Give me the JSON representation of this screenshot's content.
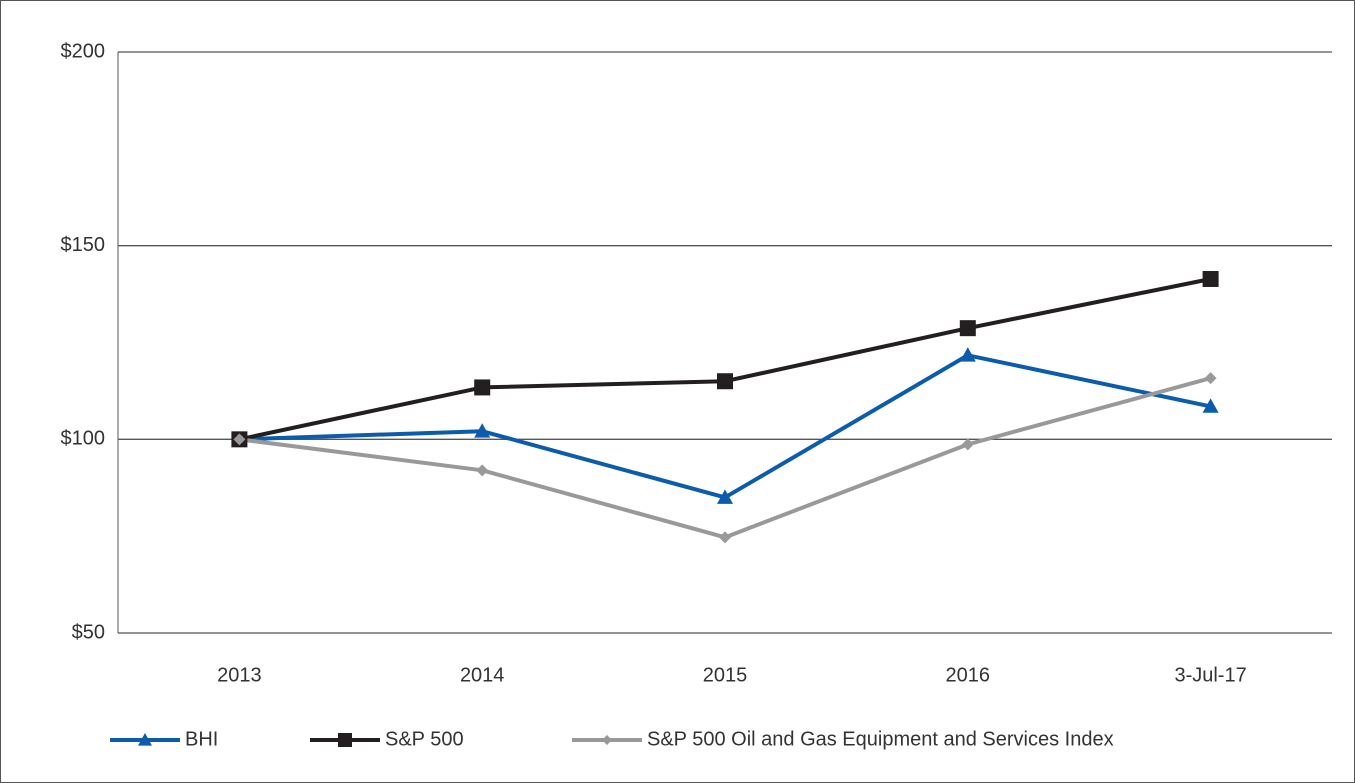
{
  "chart_data": {
    "type": "line",
    "categories": [
      "2013",
      "2014",
      "2015",
      "2016",
      "3-Jul-17"
    ],
    "series": [
      {
        "name": "BHI",
        "color": "#0b5cad",
        "marker": "triangle",
        "values": [
          100,
          102.1,
          85,
          121.7,
          108.5
        ]
      },
      {
        "name": "S&P 500",
        "color": "#231f20",
        "marker": "square",
        "values": [
          100,
          113.4,
          115,
          128.7,
          141.4
        ]
      },
      {
        "name": "S&P 500 Oil and Gas Equipment and Services Index",
        "color": "#999999",
        "marker": "diamond",
        "values": [
          100,
          92,
          74.7,
          98.7,
          115.8
        ]
      }
    ],
    "ylim": [
      50,
      200
    ],
    "yticks": [
      {
        "value": 50,
        "label": "$50"
      },
      {
        "value": 100,
        "label": "$100"
      },
      {
        "value": 150,
        "label": "$150"
      },
      {
        "value": 200,
        "label": "$200"
      }
    ],
    "grid": true,
    "legend": "bottom"
  }
}
